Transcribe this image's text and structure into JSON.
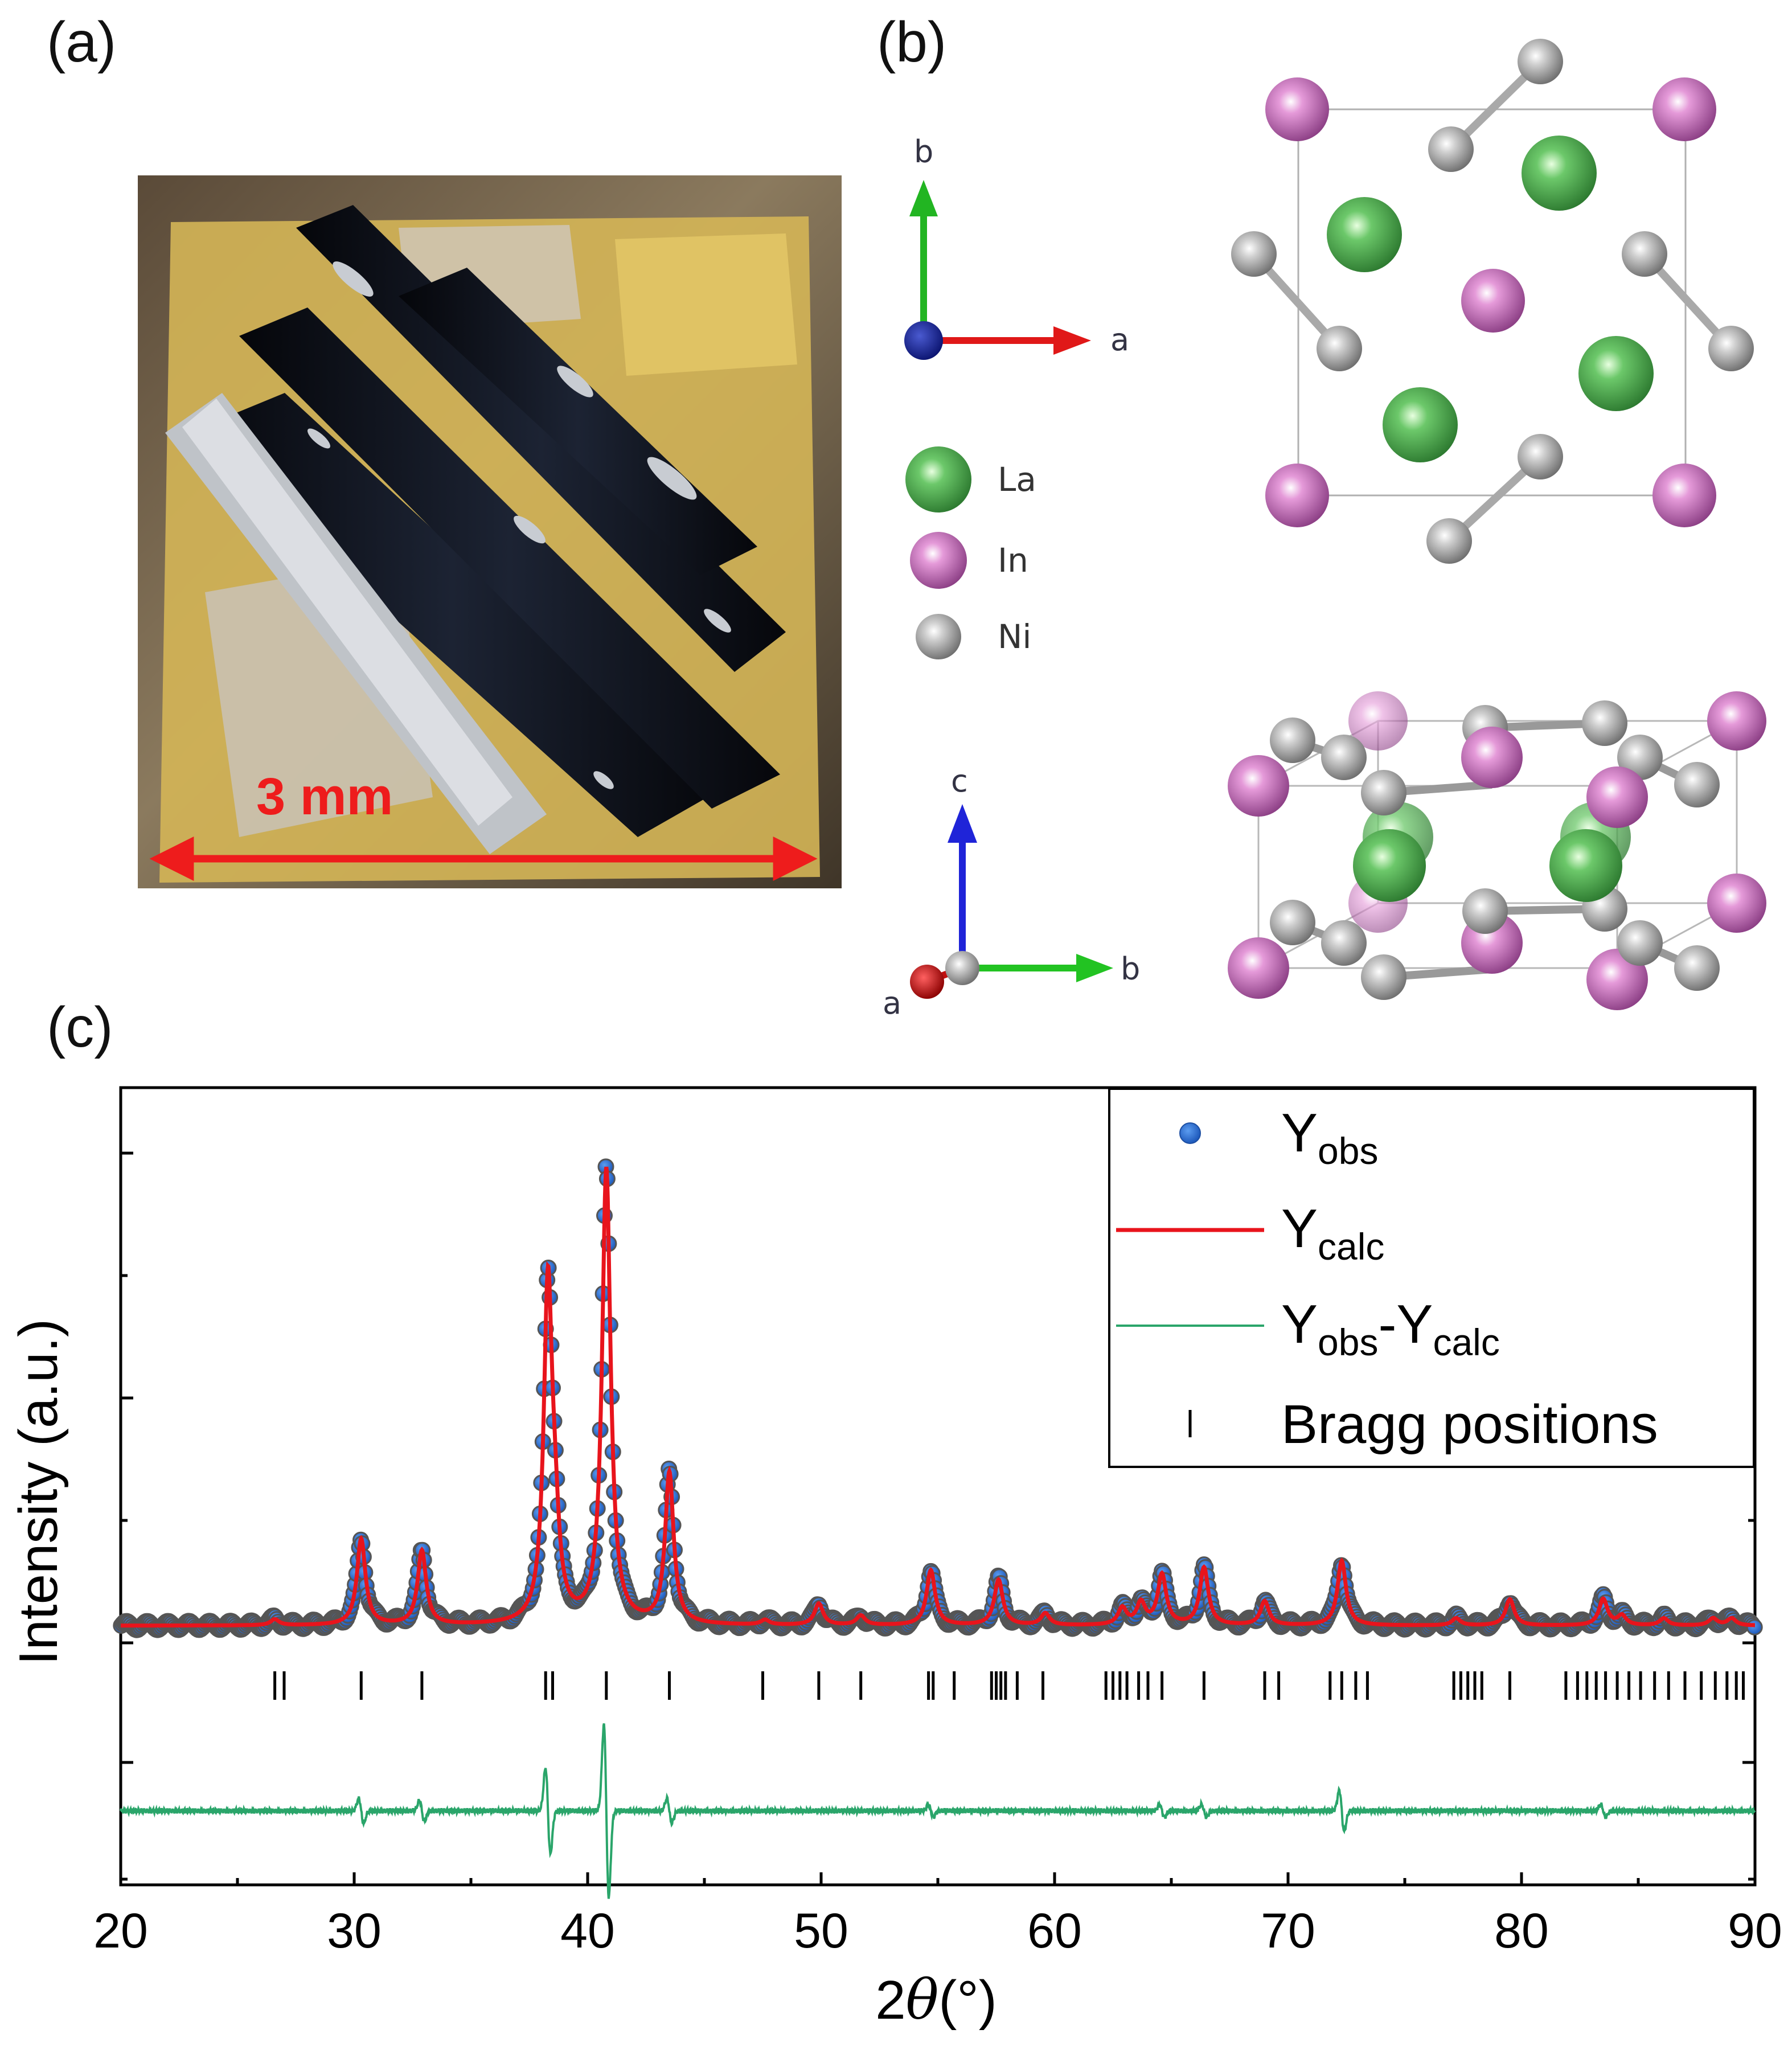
{
  "panels": {
    "a": "(a)",
    "b": "(b)",
    "c": "(c)"
  },
  "photo": {
    "scale_label": "3 mm",
    "scale_color": "#ee1c1c"
  },
  "structure": {
    "top_axes": {
      "vertical": "b",
      "horizontal": "a"
    },
    "bottom_axes": {
      "vertical": "c",
      "horizontal": "b",
      "diagonal": "a"
    },
    "legend": [
      {
        "label": "La",
        "color": "#4caf50"
      },
      {
        "label": "In",
        "color": "#c060b0"
      },
      {
        "label": "Ni",
        "color": "#a8a8a8"
      }
    ]
  },
  "colors": {
    "obs": "#2a6fd6",
    "calc": "#e8141c",
    "diff": "#2aa56a",
    "bragg": "#000000"
  },
  "chart_data": {
    "type": "scatter",
    "xlabel": "2θ (°)",
    "xlabel_parts": {
      "prefix": "2",
      "theta": "θ",
      "unit": "(°)"
    },
    "ylabel": "Intensity (a.u.)",
    "xlim": [
      20,
      90
    ],
    "xticks": [
      20,
      30,
      40,
      50,
      60,
      70,
      80,
      90
    ],
    "y_tick_labels": "none",
    "legend_position": "top-right",
    "legend": [
      {
        "main": "Y",
        "sub": "obs",
        "marker": "dot"
      },
      {
        "main": "Y",
        "sub": "calc",
        "marker": "thick-line"
      },
      {
        "main": "Y",
        "sub": "obs",
        "mid": "-Y",
        "sub2": "calc",
        "marker": "thin-line"
      },
      {
        "main": "Bragg positions",
        "marker": "tick"
      }
    ],
    "background": 1.0,
    "peaks": [
      {
        "x": 26.6,
        "h": 0.25
      },
      {
        "x": 30.3,
        "h": 3.6
      },
      {
        "x": 32.9,
        "h": 3.1
      },
      {
        "x": 38.3,
        "h": 13.9
      },
      {
        "x": 38.6,
        "h": 2.8
      },
      {
        "x": 40.8,
        "h": 19.0
      },
      {
        "x": 43.5,
        "h": 6.3
      },
      {
        "x": 47.6,
        "h": 0.2
      },
      {
        "x": 49.9,
        "h": 0.9
      },
      {
        "x": 51.7,
        "h": 0.4
      },
      {
        "x": 54.7,
        "h": 2.3
      },
      {
        "x": 57.6,
        "h": 1.9
      },
      {
        "x": 59.6,
        "h": 0.5
      },
      {
        "x": 62.9,
        "h": 0.7
      },
      {
        "x": 63.7,
        "h": 0.9
      },
      {
        "x": 64.6,
        "h": 2.1
      },
      {
        "x": 66.4,
        "h": 2.4
      },
      {
        "x": 69.0,
        "h": 1.0
      },
      {
        "x": 72.3,
        "h": 2.7
      },
      {
        "x": 77.2,
        "h": 0.3
      },
      {
        "x": 79.5,
        "h": 1.1
      },
      {
        "x": 83.5,
        "h": 1.1
      },
      {
        "x": 84.3,
        "h": 0.4
      },
      {
        "x": 86.1,
        "h": 0.3
      },
      {
        "x": 88.2,
        "h": 0.3
      },
      {
        "x": 89.0,
        "h": 0.3
      }
    ],
    "bragg_positions": [
      26.6,
      27.0,
      30.3,
      32.9,
      38.2,
      38.5,
      40.8,
      43.5,
      47.5,
      49.9,
      51.7,
      54.6,
      54.8,
      55.7,
      57.3,
      57.5,
      57.7,
      57.9,
      58.4,
      59.5,
      62.2,
      62.5,
      62.8,
      63.1,
      63.6,
      64.0,
      64.6,
      66.4,
      69.0,
      69.6,
      71.8,
      72.3,
      72.9,
      73.4,
      77.1,
      77.4,
      77.7,
      78.0,
      78.3,
      79.5,
      81.9,
      82.4,
      82.8,
      83.2,
      83.6,
      84.1,
      84.6,
      85.1,
      85.7,
      86.3,
      87.0,
      87.7,
      88.3,
      88.8,
      89.2,
      89.5
    ],
    "difference_features": [
      {
        "x": 30.3,
        "amp": 0.6
      },
      {
        "x": 32.9,
        "amp": 0.5
      },
      {
        "x": 38.3,
        "amp": 2.1
      },
      {
        "x": 40.8,
        "amp": 4.2
      },
      {
        "x": 43.5,
        "amp": 0.6
      },
      {
        "x": 54.7,
        "amp": 0.3
      },
      {
        "x": 64.6,
        "amp": 0.3
      },
      {
        "x": 66.4,
        "amp": 0.3
      },
      {
        "x": 72.3,
        "amp": 1.0
      },
      {
        "x": 83.5,
        "amp": 0.3
      }
    ]
  }
}
